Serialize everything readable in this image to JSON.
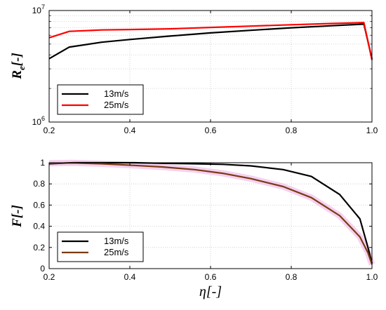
{
  "chart_data": [
    {
      "type": "line",
      "scale_y": "log",
      "xlim": [
        0.2,
        1.0
      ],
      "ylim": [
        1000000,
        10000000
      ],
      "x_ticks": [
        "0.2",
        "0.4",
        "0.6",
        "0.8",
        "1.0"
      ],
      "y_tick_base": "10",
      "y_tick_exponents": [
        "6",
        "7"
      ],
      "y_tick_values": [
        1000000,
        10000000
      ],
      "ylabel_main": "R",
      "ylabel_sub": "e",
      "ylabel_unit": "[-]",
      "grid": true,
      "legend_position": "lower-left",
      "series": [
        {
          "name": "13m/s",
          "color": "#000000",
          "x": [
            0.2,
            0.25,
            0.33,
            0.4,
            0.5,
            0.6,
            0.7,
            0.8,
            0.9,
            0.98,
            1.0
          ],
          "y": [
            3700000,
            4700000,
            5200000,
            5500000,
            5900000,
            6300000,
            6650000,
            7000000,
            7300000,
            7550000,
            3700000
          ]
        },
        {
          "name": "25m/s",
          "color": "#ff0000",
          "x": [
            0.2,
            0.25,
            0.33,
            0.4,
            0.5,
            0.6,
            0.7,
            0.8,
            0.9,
            0.98,
            1.0
          ],
          "y": [
            5700000,
            6500000,
            6700000,
            6750000,
            6850000,
            7050000,
            7250000,
            7450000,
            7650000,
            7800000,
            3600000
          ]
        }
      ]
    },
    {
      "type": "line",
      "xlim": [
        0.2,
        1.0
      ],
      "ylim": [
        0,
        1
      ],
      "x_ticks": [
        "0.2",
        "0.4",
        "0.6",
        "0.8",
        "1.0"
      ],
      "y_ticks": [
        "0",
        "0.2",
        "0.4",
        "0.6",
        "0.8",
        "1"
      ],
      "y_tick_values": [
        0,
        0.2,
        0.4,
        0.6,
        0.8,
        1.0
      ],
      "xlabel": "η[-]",
      "ylabel": "F[-]",
      "grid": true,
      "legend_position": "lower-left",
      "series": [
        {
          "name": "13m/s",
          "color": "#000000",
          "x": [
            0.2,
            0.26,
            0.33,
            0.41,
            0.48,
            0.56,
            0.63,
            0.7,
            0.78,
            0.85,
            0.92,
            0.97,
            0.99,
            1.0
          ],
          "y": [
            0.99,
            1.0,
            1.0,
            1.0,
            0.995,
            0.99,
            0.985,
            0.97,
            0.935,
            0.87,
            0.7,
            0.47,
            0.2,
            0.05
          ]
        },
        {
          "name": "25m/s",
          "color": "#7a3b10",
          "x": [
            0.2,
            0.26,
            0.33,
            0.41,
            0.48,
            0.56,
            0.63,
            0.7,
            0.78,
            0.85,
            0.92,
            0.97,
            0.99,
            1.0
          ],
          "y": [
            0.995,
            0.998,
            0.99,
            0.975,
            0.96,
            0.935,
            0.9,
            0.85,
            0.775,
            0.67,
            0.5,
            0.3,
            0.15,
            0.04
          ]
        }
      ]
    }
  ]
}
